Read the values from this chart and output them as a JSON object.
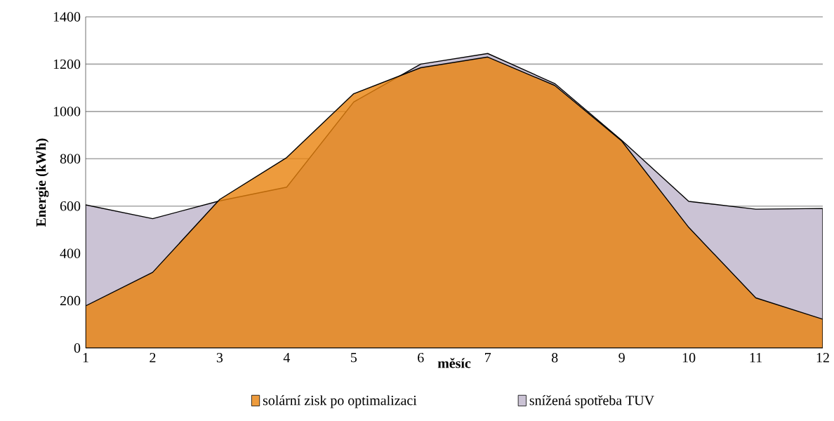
{
  "chart_data": {
    "type": "area",
    "xlabel": "měsíc",
    "ylabel": "Energie (kWh)",
    "x": [
      1,
      2,
      3,
      4,
      5,
      6,
      7,
      8,
      9,
      10,
      11,
      12
    ],
    "series": [
      {
        "name": "snížená spotřeba TUV",
        "color": "#cbc3d5",
        "values": [
          605,
          547,
          622,
          680,
          1040,
          1200,
          1245,
          1118,
          878,
          620,
          587,
          590
        ]
      },
      {
        "name": "solární zisk po optimalizaci",
        "color": "#e8820c",
        "values": [
          178,
          320,
          628,
          805,
          1075,
          1185,
          1230,
          1110,
          875,
          510,
          212,
          122
        ]
      }
    ],
    "xlim": [
      1,
      12
    ],
    "xticks": [
      1,
      2,
      3,
      4,
      5,
      6,
      7,
      8,
      9,
      10,
      11,
      12
    ],
    "ylim": [
      0,
      1400
    ],
    "yticks": [
      0,
      200,
      400,
      600,
      800,
      1000,
      1200,
      1400
    ],
    "grid": "y",
    "legend": "bottom"
  }
}
